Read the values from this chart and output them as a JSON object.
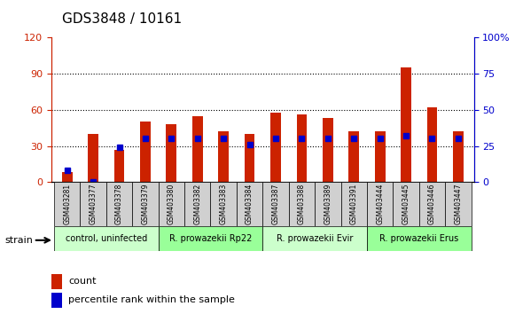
{
  "title": "GDS3848 / 10161",
  "samples": [
    "GSM403281",
    "GSM403377",
    "GSM403378",
    "GSM403379",
    "GSM403380",
    "GSM403382",
    "GSM403383",
    "GSM403384",
    "GSM403387",
    "GSM403388",
    "GSM403389",
    "GSM403391",
    "GSM403444",
    "GSM403445",
    "GSM403446",
    "GSM403447"
  ],
  "count_values": [
    8,
    40,
    27,
    50,
    48,
    55,
    42,
    40,
    58,
    56,
    53,
    42,
    42,
    95,
    62,
    42
  ],
  "percentile_values": [
    8,
    0,
    24,
    30,
    30,
    30,
    30,
    26,
    30,
    30,
    30,
    30,
    30,
    32,
    30,
    30
  ],
  "groups": [
    {
      "label": "control, uninfected",
      "start": 0,
      "end": 4,
      "color": "#ccffcc"
    },
    {
      "label": "R. prowazekii Rp22",
      "start": 4,
      "end": 8,
      "color": "#99ff99"
    },
    {
      "label": "R. prowazekii Evir",
      "start": 8,
      "end": 12,
      "color": "#ccffcc"
    },
    {
      "label": "R. prowazekii Erus",
      "start": 12,
      "end": 16,
      "color": "#99ff99"
    }
  ],
  "left_ylim": [
    0,
    120
  ],
  "right_ylim": [
    0,
    100
  ],
  "left_yticks": [
    0,
    30,
    60,
    90,
    120
  ],
  "right_yticks": [
    0,
    25,
    50,
    75,
    100
  ],
  "left_yticklabels": [
    "0",
    "30",
    "60",
    "90",
    "120"
  ],
  "right_yticklabels": [
    "0",
    "25",
    "50",
    "75",
    "100%"
  ],
  "bar_color": "#cc2200",
  "percentile_color": "#0000cc",
  "grid_color": "#000000",
  "legend_count_label": "count",
  "legend_percentile_label": "percentile rank within the sample",
  "strain_label": "strain",
  "xlabel_color": "#cc2200",
  "right_axis_color": "#0000cc"
}
